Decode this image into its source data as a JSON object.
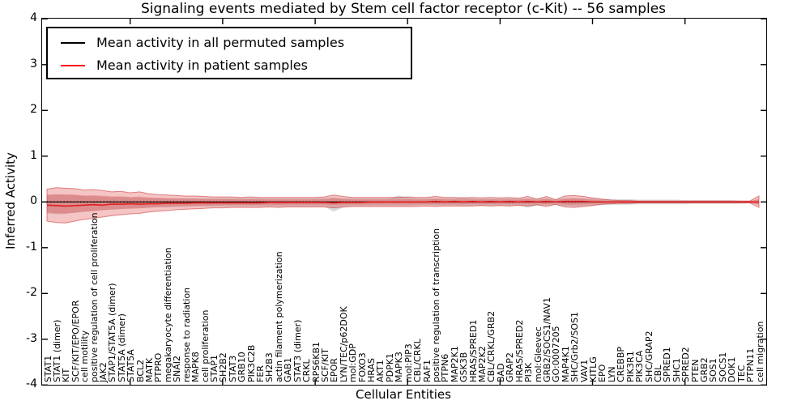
{
  "title": "Signaling events mediated by Stem cell factor receptor (c-Kit) -- 56 samples",
  "axes": {
    "ylabel": "Inferred Activity",
    "xlabel": "Cellular Entities",
    "ytick_labels": [
      "4",
      "3",
      "2",
      "1",
      "0",
      "-1",
      "-2",
      "-3",
      "-4"
    ],
    "ytick_values": [
      4,
      3,
      2,
      1,
      0,
      -1,
      -2,
      -3,
      -4
    ]
  },
  "legend": {
    "items": [
      {
        "label": "Mean activity in all permuted samples",
        "color": "#000000"
      },
      {
        "label": "Mean activity in patient samples",
        "color": "#ff0000"
      }
    ]
  },
  "colors": {
    "patient_line": "#e01f1f",
    "permuted_line": "#000000",
    "band_red": "#e04a4a",
    "band_red_edge": "#cc2a2a",
    "band_gray": "#999999"
  },
  "chart_data": {
    "type": "line",
    "title": "Signaling events mediated by Stem cell factor receptor (c-Kit) -- 56 samples",
    "xlabel": "Cellular Entities",
    "ylabel": "Inferred Activity",
    "ylim": [
      -4,
      4
    ],
    "legend_position": "upper left",
    "grid": false,
    "categories": [
      "STAT1",
      "STAT1 (dimer)",
      "KIT",
      "SCF/KIT/EPO/EPOR",
      "cell motility",
      "positive regulation of cell proliferation",
      "JAK2",
      "STAP1/STAT5A (dimer)",
      "STAT5A (dimer)",
      "STAT5A",
      "BCL2",
      "MATK",
      "PTPRO",
      "megakaryocyte differentiation",
      "SNAI2",
      "response to radiation",
      "MAPK8",
      "cell proliferation",
      "STAP1",
      "SH2B2",
      "STAT3",
      "GRB10",
      "PIK3C2B",
      "FER",
      "SH2B3",
      "actin filament polymerization",
      "GAB1",
      "STAT3 (dimer)",
      "CRKL",
      "RPS6KB1",
      "SCF/KIT",
      "EPOR",
      "LYN/TEC/p62DOK",
      "mol:GDP",
      "FOXO3",
      "HRAS",
      "AKT1",
      "PDPK1",
      "MAPK3",
      "mol:PIP3",
      "CBL/CRKL",
      "RAF1",
      "positive regulation of transcription",
      "PTPN6",
      "MAP2K1",
      "GSK3B",
      "HRAS/SPRED1",
      "MAP2K2",
      "CBL/CRKL/GRB2",
      "BAD",
      "GRAP2",
      "HRAS/SPRED2",
      "PI3K",
      "mol:Gleevec",
      "GRB2/SOCS1/NAV1",
      "GO:0007205",
      "MAP4K1",
      "SHC/Grb2/SOS1",
      "VAV1",
      "KITLG",
      "EPO",
      "LYN",
      "CREBBP",
      "PIK3R1",
      "PIK3CA",
      "SHC/GRAP2",
      "CBL",
      "SPRED1",
      "SHC1",
      "SPRED2",
      "PTEN",
      "GRB2",
      "SOS1",
      "SOCS1",
      "DOK1",
      "TEC",
      "PTPN11",
      "cell migration"
    ],
    "series": [
      {
        "name": "Mean activity in all permuted samples",
        "values": [
          0,
          0,
          0,
          0,
          0,
          0,
          0,
          0,
          0,
          0,
          0,
          0,
          0,
          0,
          0,
          0,
          0,
          0,
          0,
          0,
          0,
          0,
          0,
          0,
          0,
          0,
          0,
          0,
          0,
          0,
          0,
          0,
          0,
          0,
          0,
          0,
          0,
          0,
          0,
          0,
          0,
          0,
          0,
          0,
          0,
          0,
          0,
          0,
          0,
          0,
          0,
          0,
          0,
          0,
          0,
          0,
          0,
          0,
          0,
          0,
          0,
          0,
          0,
          0,
          0,
          0,
          0,
          0,
          0,
          0,
          0,
          0,
          0,
          0,
          0,
          0,
          0,
          0
        ]
      },
      {
        "name": "Mean activity in patient samples",
        "values": [
          -0.07,
          -0.08,
          -0.09,
          -0.08,
          -0.07,
          -0.06,
          -0.07,
          -0.05,
          -0.05,
          -0.04,
          -0.05,
          -0.04,
          -0.04,
          -0.03,
          -0.03,
          -0.03,
          -0.02,
          -0.02,
          -0.02,
          -0.02,
          -0.02,
          -0.02,
          -0.02,
          -0.02,
          -0.01,
          -0.01,
          -0.01,
          -0.01,
          -0.01,
          -0.01,
          -0.01,
          -0.02,
          -0.01,
          -0.01,
          -0.01,
          0,
          0,
          0,
          0,
          0,
          0,
          0,
          0.01,
          0,
          0.01,
          0,
          0.01,
          0,
          0.01,
          0,
          0.01,
          0,
          0.01,
          0,
          0.01,
          0,
          0.01,
          0.01,
          0.01,
          0,
          0,
          0,
          0,
          0,
          0,
          0,
          0,
          0,
          0,
          0,
          0,
          0,
          0,
          0,
          0,
          0,
          0,
          0
        ]
      }
    ],
    "bands": {
      "patient_upper": [
        0.28,
        0.31,
        0.3,
        0.29,
        0.26,
        0.27,
        0.25,
        0.22,
        0.23,
        0.2,
        0.22,
        0.18,
        0.16,
        0.15,
        0.14,
        0.13,
        0.13,
        0.12,
        0.11,
        0.11,
        0.11,
        0.1,
        0.11,
        0.1,
        0.1,
        0.1,
        0.1,
        0.1,
        0.1,
        0.1,
        0.11,
        0.15,
        0.12,
        0.1,
        0.1,
        0.1,
        0.1,
        0.1,
        0.1,
        0.11,
        0.1,
        0.1,
        0.12,
        0.1,
        0.1,
        0.09,
        0.1,
        0.09,
        0.1,
        0.09,
        0.1,
        0.08,
        0.12,
        0.06,
        0.12,
        0.05,
        0.13,
        0.14,
        0.12,
        0.09,
        0.06,
        0.04,
        0.03,
        0.03,
        0.02,
        0.02,
        0.02,
        0.02,
        0.02,
        0.02,
        0.02,
        0.02,
        0.02,
        0.02,
        0.02,
        0.02,
        0.02,
        0.13
      ],
      "patient_lower": [
        -0.42,
        -0.45,
        -0.46,
        -0.42,
        -0.38,
        -0.36,
        -0.33,
        -0.3,
        -0.28,
        -0.26,
        -0.25,
        -0.22,
        -0.2,
        -0.19,
        -0.17,
        -0.16,
        -0.15,
        -0.14,
        -0.13,
        -0.13,
        -0.12,
        -0.12,
        -0.12,
        -0.12,
        -0.11,
        -0.12,
        -0.11,
        -0.11,
        -0.11,
        -0.11,
        -0.11,
        -0.13,
        -0.11,
        -0.1,
        -0.1,
        -0.1,
        -0.1,
        -0.1,
        -0.1,
        -0.1,
        -0.1,
        -0.09,
        -0.1,
        -0.09,
        -0.09,
        -0.09,
        -0.09,
        -0.08,
        -0.09,
        -0.08,
        -0.09,
        -0.07,
        -0.09,
        -0.06,
        -0.1,
        -0.05,
        -0.11,
        -0.12,
        -0.1,
        -0.08,
        -0.05,
        -0.04,
        -0.03,
        -0.03,
        -0.02,
        -0.02,
        -0.02,
        -0.02,
        -0.02,
        -0.02,
        -0.02,
        -0.02,
        -0.02,
        -0.02,
        -0.02,
        -0.02,
        -0.02,
        -0.12
      ],
      "inner_scale": 0.55,
      "permuted_upper": [
        0.15,
        0.16,
        0.16,
        0.15,
        0.13,
        0.13,
        0.12,
        0.11,
        0.11,
        0.1,
        0.1,
        0.09,
        0.09,
        0.08,
        0.08,
        0.08,
        0.08,
        0.08,
        0.08,
        0.08,
        0.08,
        0.08,
        0.08,
        0.08,
        0.08,
        0.08,
        0.08,
        0.08,
        0.08,
        0.08,
        0.08,
        0.1,
        0.08,
        0.08,
        0.08,
        0.08,
        0.08,
        0.08,
        0.14,
        0.1,
        0.08,
        0.08,
        0.08,
        0.08,
        0.08,
        0.1,
        0.07,
        0.07,
        0.07,
        0.07,
        0.07,
        0.07,
        0.08,
        0.07,
        0.08,
        0.06,
        0.08,
        0.09,
        0.08,
        0.07,
        0.07,
        0.06,
        0.06,
        0.06,
        0.05,
        0.05,
        0.05,
        0.05,
        0.05,
        0.04,
        0.04,
        0.04,
        0.04,
        0.04,
        0.04,
        0.03,
        0.03,
        0.04
      ],
      "permuted_lower": [
        -0.25,
        -0.27,
        -0.26,
        -0.24,
        -0.22,
        -0.2,
        -0.18,
        -0.17,
        -0.16,
        -0.15,
        -0.14,
        -0.13,
        -0.12,
        -0.12,
        -0.11,
        -0.11,
        -0.1,
        -0.1,
        -0.1,
        -0.1,
        -0.1,
        -0.1,
        -0.1,
        -0.1,
        -0.1,
        -0.1,
        -0.1,
        -0.1,
        -0.1,
        -0.1,
        -0.1,
        -0.21,
        -0.12,
        -0.09,
        -0.09,
        -0.09,
        -0.09,
        -0.09,
        -0.09,
        -0.09,
        -0.08,
        -0.08,
        -0.08,
        -0.08,
        -0.08,
        -0.09,
        -0.08,
        -0.08,
        -0.08,
        -0.08,
        -0.08,
        -0.08,
        -0.12,
        -0.08,
        -0.08,
        -0.07,
        -0.09,
        -0.1,
        -0.09,
        -0.08,
        -0.07,
        -0.06,
        -0.06,
        -0.06,
        -0.05,
        -0.05,
        -0.05,
        -0.05,
        -0.05,
        -0.05,
        -0.04,
        -0.04,
        -0.04,
        -0.04,
        -0.04,
        -0.04,
        -0.03,
        -0.05
      ]
    },
    "xtick_major_indices": [
      9,
      19,
      29,
      39,
      49,
      59,
      69
    ]
  }
}
